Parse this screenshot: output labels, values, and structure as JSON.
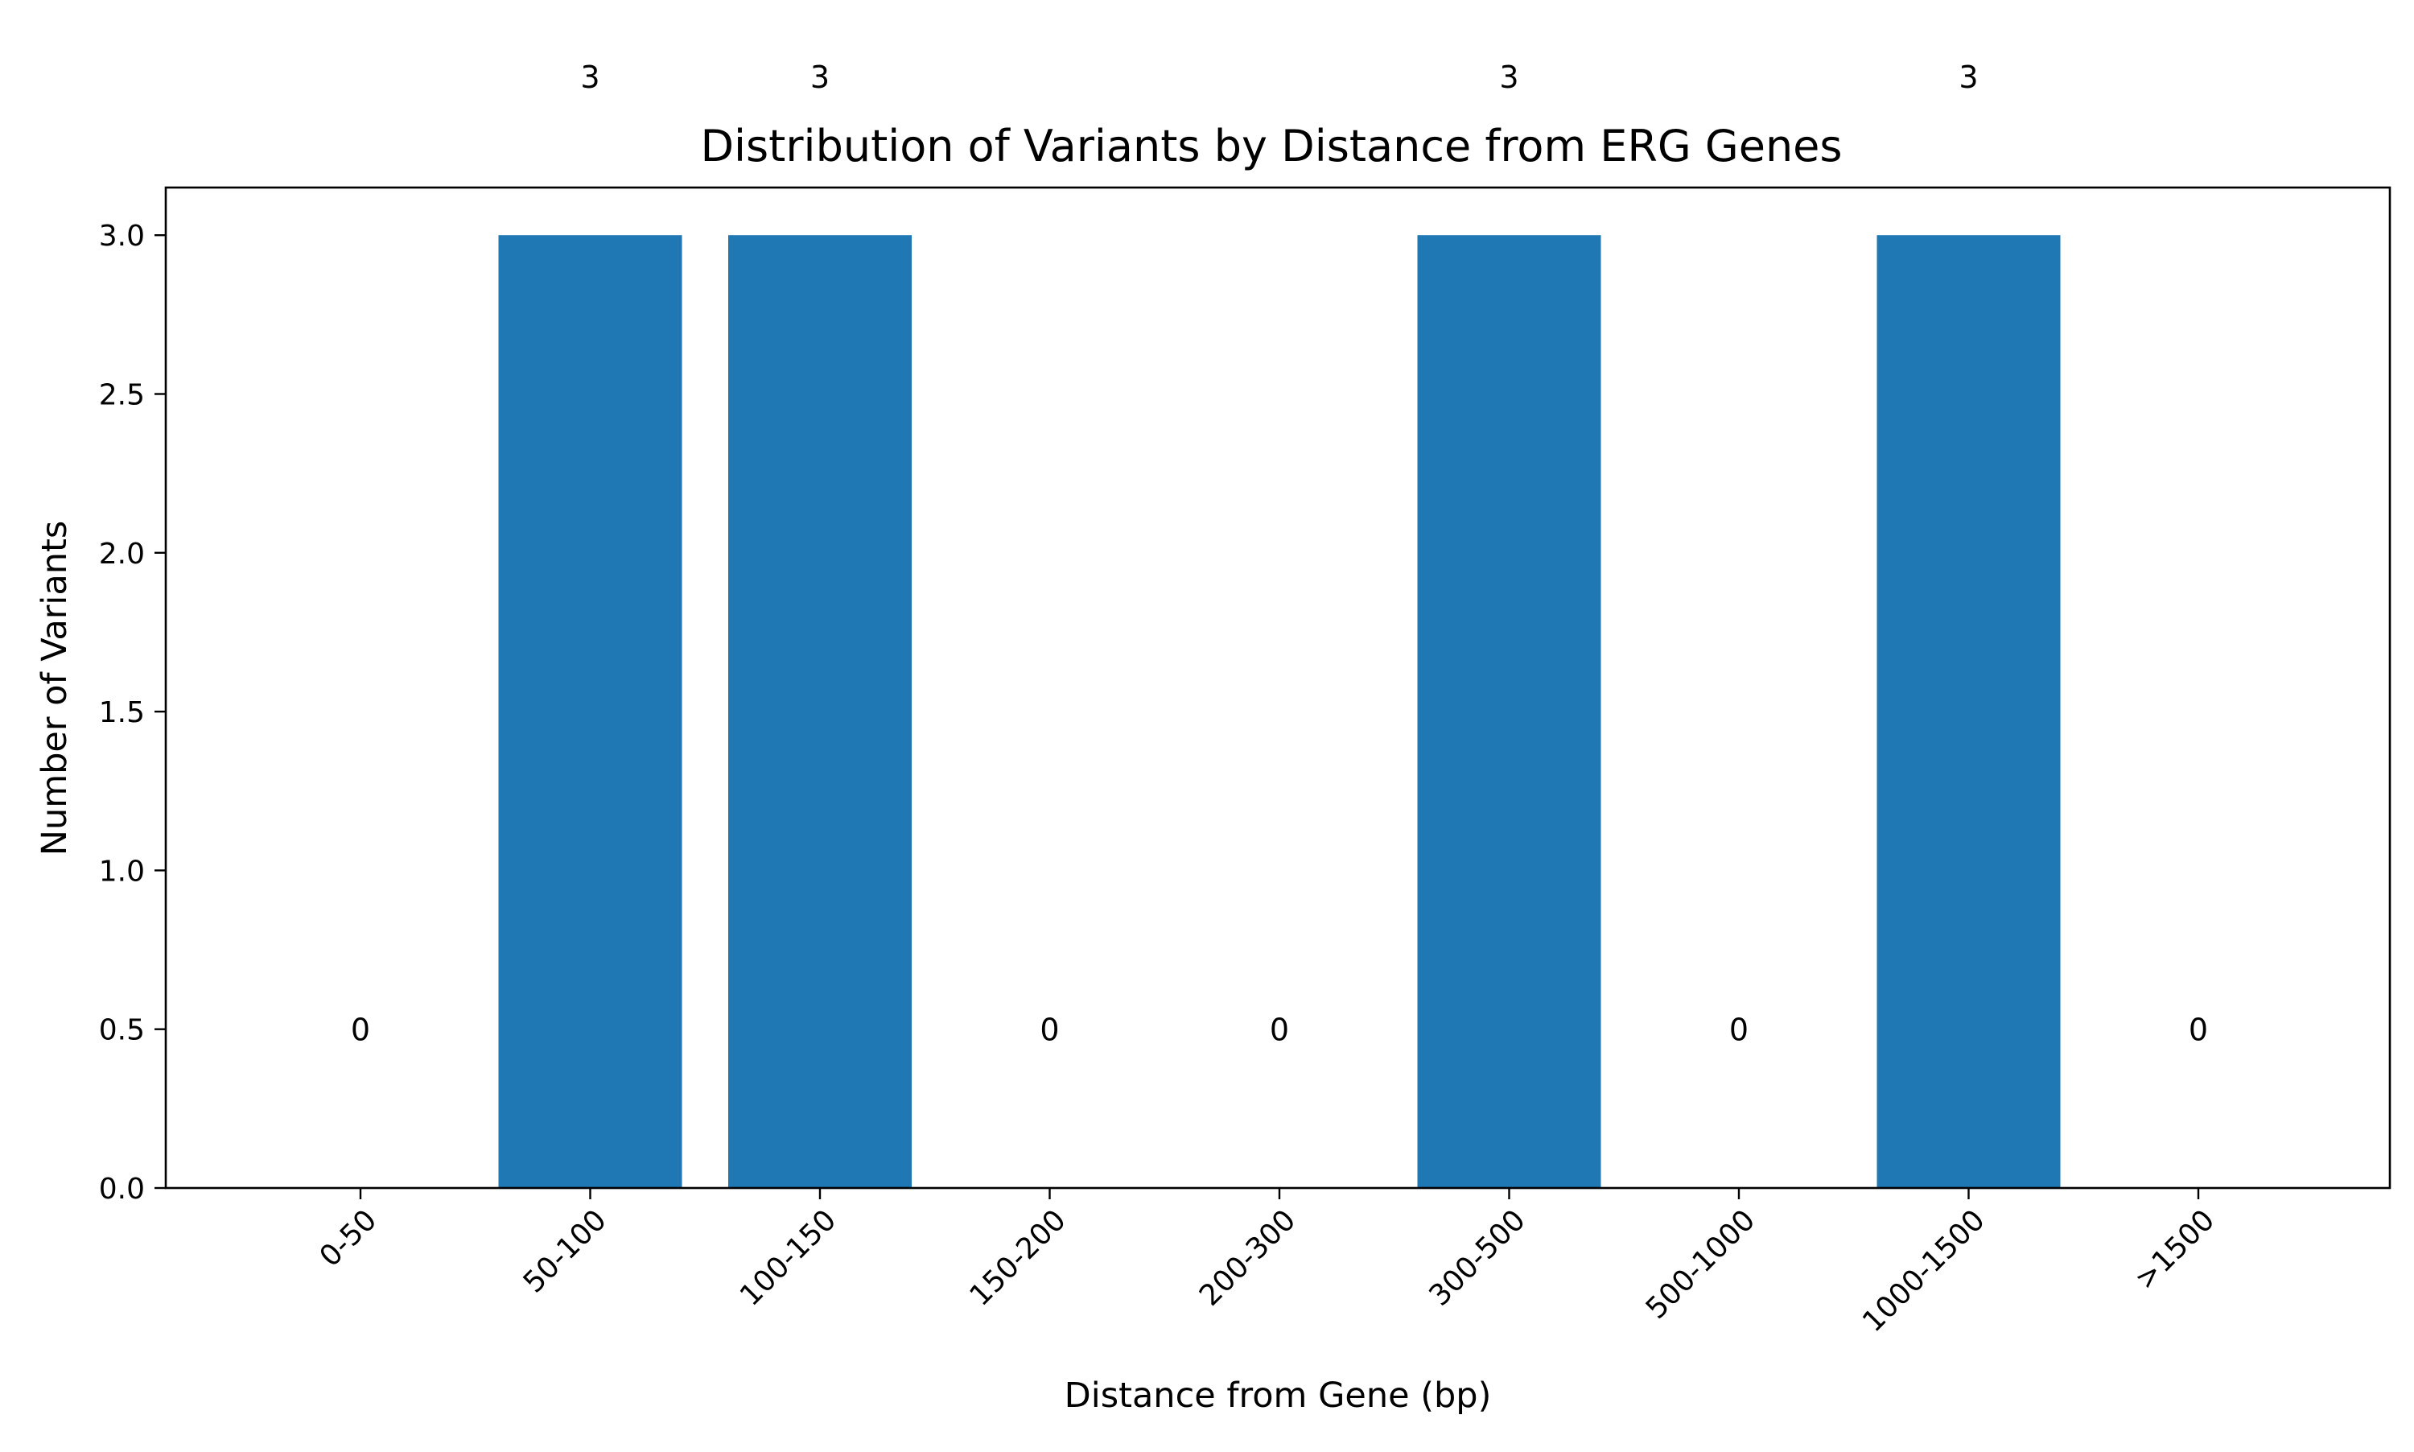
{
  "chart_data": {
    "type": "bar",
    "title": "Distribution of Variants by Distance from ERG Genes",
    "xlabel": "Distance from Gene (bp)",
    "ylabel": "Number of Variants",
    "categories": [
      "0-50",
      "50-100",
      "100-150",
      "150-200",
      "200-300",
      "300-500",
      "500-1000",
      "1000-1500",
      ">1500"
    ],
    "values": [
      0,
      3,
      3,
      0,
      0,
      3,
      0,
      3,
      0
    ],
    "ylim": [
      0,
      3.15
    ],
    "yticks": [
      "0.0",
      "0.5",
      "1.0",
      "1.5",
      "2.0",
      "2.5",
      "3.0"
    ],
    "data_labels": [
      "0",
      "3",
      "3",
      "0",
      "0",
      "3",
      "0",
      "3",
      "0"
    ],
    "grid": false,
    "legend": "none",
    "bar_color": "#1f77b4"
  }
}
